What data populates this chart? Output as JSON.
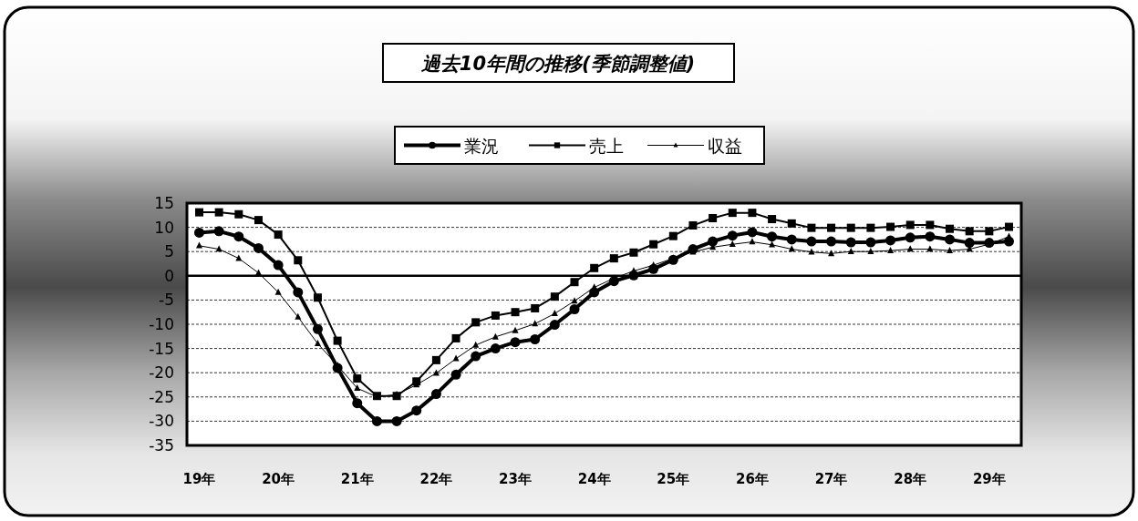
{
  "chart_data": {
    "type": "line",
    "title": "過去10年間の推移(季節調整値)",
    "categories": [
      "19年",
      null,
      null,
      null,
      "20年",
      null,
      null,
      null,
      "21年",
      null,
      null,
      null,
      "22年",
      null,
      null,
      null,
      "23年",
      null,
      null,
      null,
      "24年",
      null,
      null,
      null,
      "25年",
      null,
      null,
      null,
      "26年",
      null,
      null,
      null,
      "27年",
      null,
      null,
      null,
      "28年",
      null,
      null,
      null,
      "29年",
      null
    ],
    "series": [
      {
        "name": "業況",
        "color": "#000000",
        "marker": "circle",
        "values": [
          8.9,
          9.2,
          8.1,
          5.7,
          2.2,
          -3.4,
          -11.0,
          -19.0,
          -26.3,
          -30.0,
          -30.0,
          -27.8,
          -24.4,
          -20.4,
          -16.6,
          -15.0,
          -13.7,
          -13.1,
          -10.1,
          -6.9,
          -3.4,
          -1.1,
          0.1,
          1.4,
          3.3,
          5.5,
          7.1,
          8.3,
          9.0,
          8.1,
          7.5,
          7.1,
          7.1,
          6.9,
          6.9,
          7.3,
          7.9,
          8.1,
          7.5,
          6.8,
          6.8,
          7.1
        ]
      },
      {
        "name": "売上",
        "color": "#000000",
        "marker": "square",
        "values": [
          13.1,
          13.1,
          12.7,
          11.5,
          8.5,
          3.2,
          -4.5,
          -13.4,
          -21.2,
          -24.8,
          -24.8,
          -21.8,
          -17.4,
          -12.9,
          -9.6,
          -8.2,
          -7.5,
          -6.7,
          -4.3,
          -1.3,
          1.6,
          3.6,
          4.8,
          6.5,
          8.2,
          10.4,
          11.9,
          13.0,
          13.0,
          11.7,
          10.8,
          9.9,
          9.9,
          9.9,
          9.9,
          10.1,
          10.5,
          10.5,
          9.7,
          9.2,
          9.2,
          10.1
        ]
      },
      {
        "name": "収益",
        "color": "#000000",
        "marker": "triangle",
        "values": [
          6.2,
          5.5,
          3.6,
          0.6,
          -3.4,
          -8.5,
          -14.0,
          -18.5,
          -23.2,
          -25.0,
          -24.5,
          -22.5,
          -20.1,
          -17.1,
          -14.3,
          -12.6,
          -11.3,
          -9.9,
          -7.8,
          -5.2,
          -2.4,
          -0.5,
          1.0,
          2.2,
          3.6,
          4.9,
          5.9,
          6.5,
          7.0,
          6.4,
          5.5,
          4.9,
          4.6,
          5.0,
          5.0,
          5.2,
          5.5,
          5.5,
          5.2,
          5.5,
          6.5,
          8.1
        ]
      }
    ],
    "ylim": [
      -35,
      15
    ],
    "yticks": [
      15,
      10,
      5,
      0,
      -5,
      -10,
      -15,
      -20,
      -25,
      -30,
      -35
    ],
    "grid": "y",
    "legend": "top",
    "ref_lines": [
      {
        "axis": "y",
        "value": 0,
        "line_style": "solid",
        "color": "#000000"
      }
    ]
  }
}
